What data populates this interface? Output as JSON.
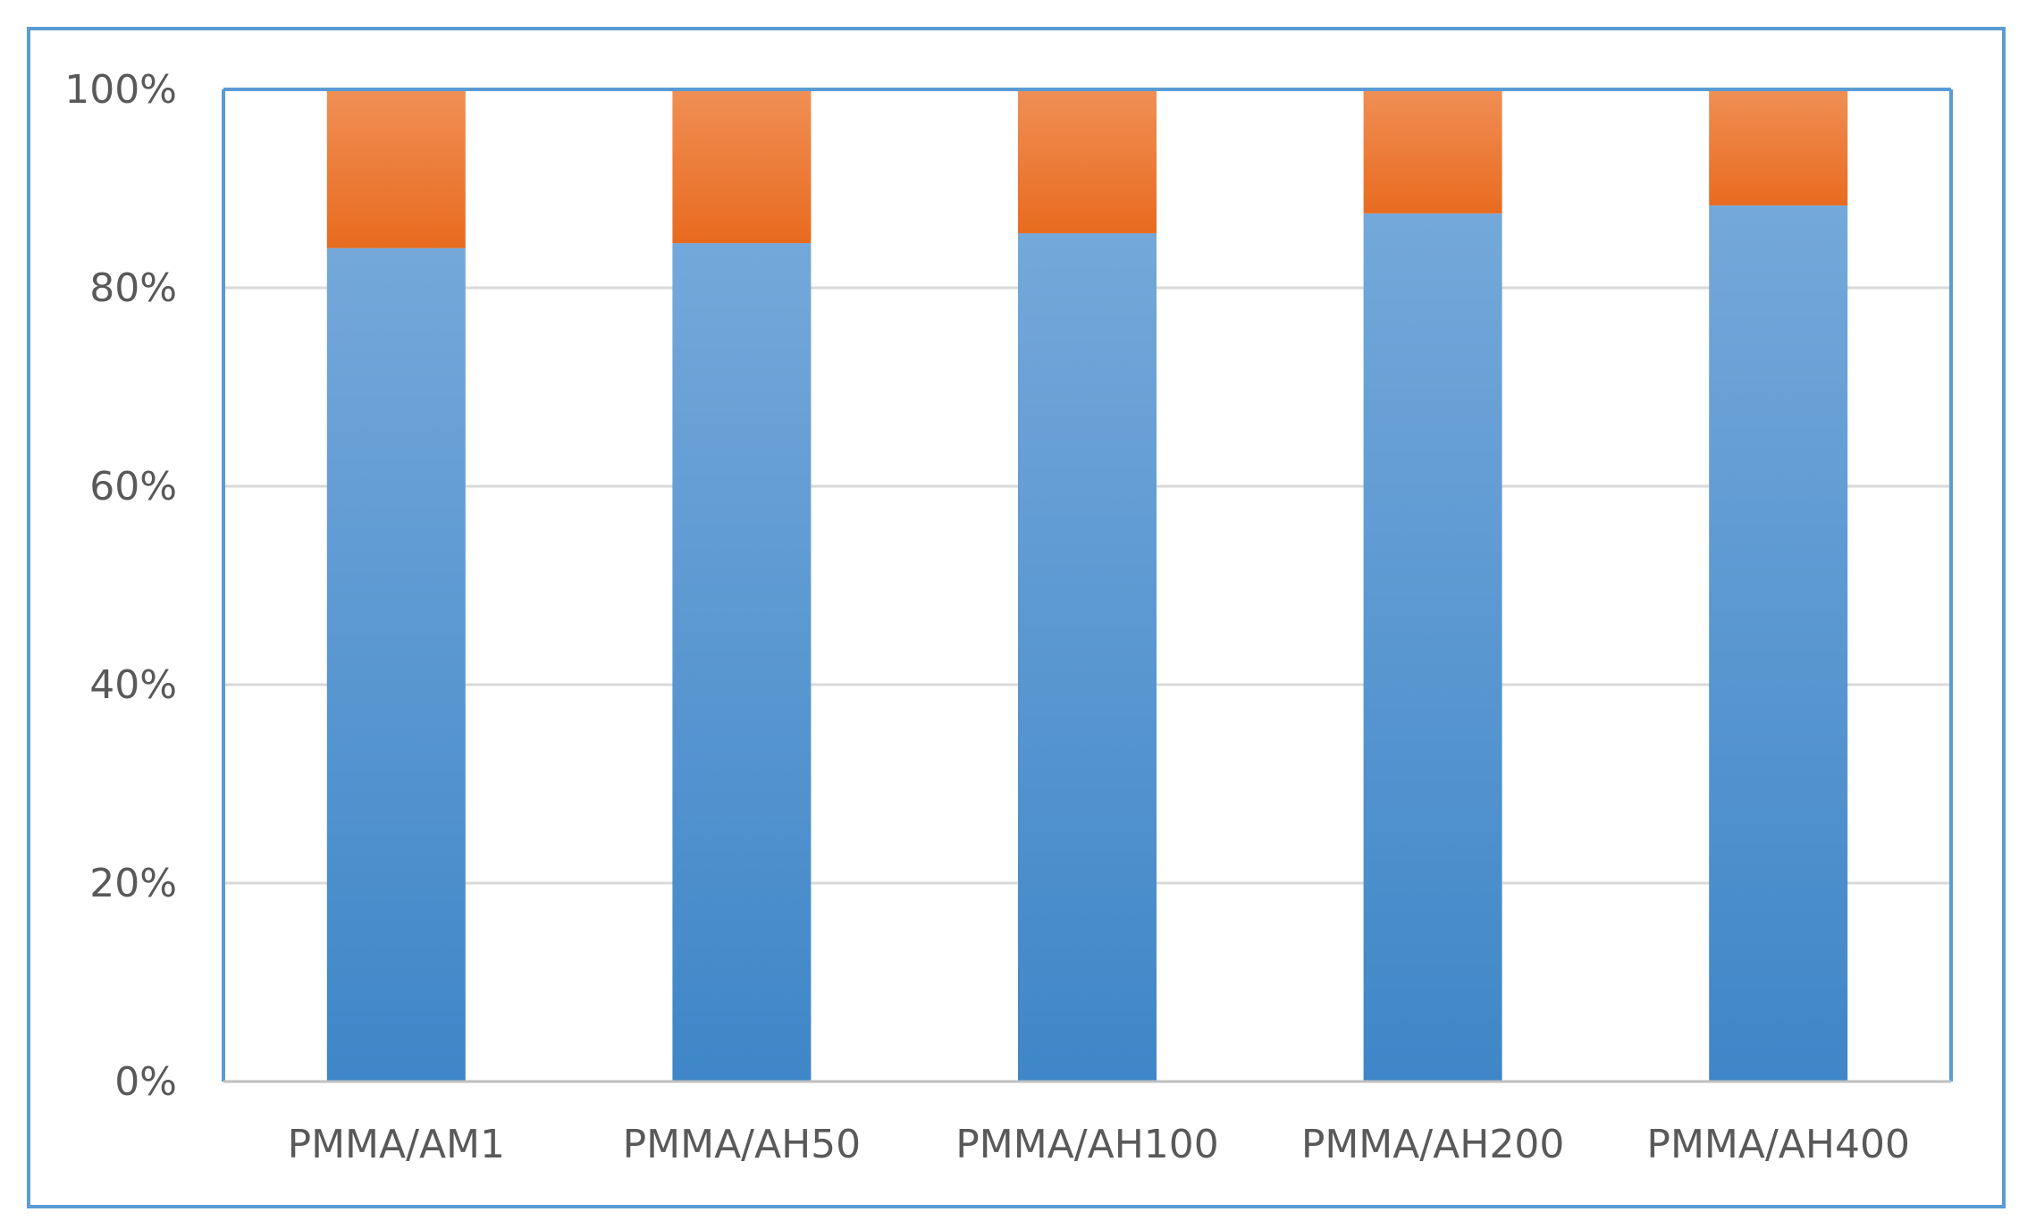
{
  "chart_data": {
    "type": "bar",
    "stacked": true,
    "percent_stacked": true,
    "categories": [
      "PMMA/AM1",
      "PMMA/AH50",
      "PMMA/AH100",
      "PMMA/AH200",
      "PMMA/AH400"
    ],
    "series": [
      {
        "values": [
          84.0,
          84.5,
          85.5,
          87.5,
          88.3
        ],
        "color": "#5b9bd5"
      },
      {
        "values": [
          16.0,
          15.5,
          14.5,
          12.5,
          11.7
        ],
        "color": "#ed7d31"
      }
    ],
    "yticks": [
      "0%",
      "20%",
      "40%",
      "60%",
      "80%",
      "100%"
    ],
    "ylim": [
      0,
      100
    ],
    "title": "",
    "xlabel": "",
    "ylabel": "",
    "grid": true,
    "legend": "none"
  }
}
